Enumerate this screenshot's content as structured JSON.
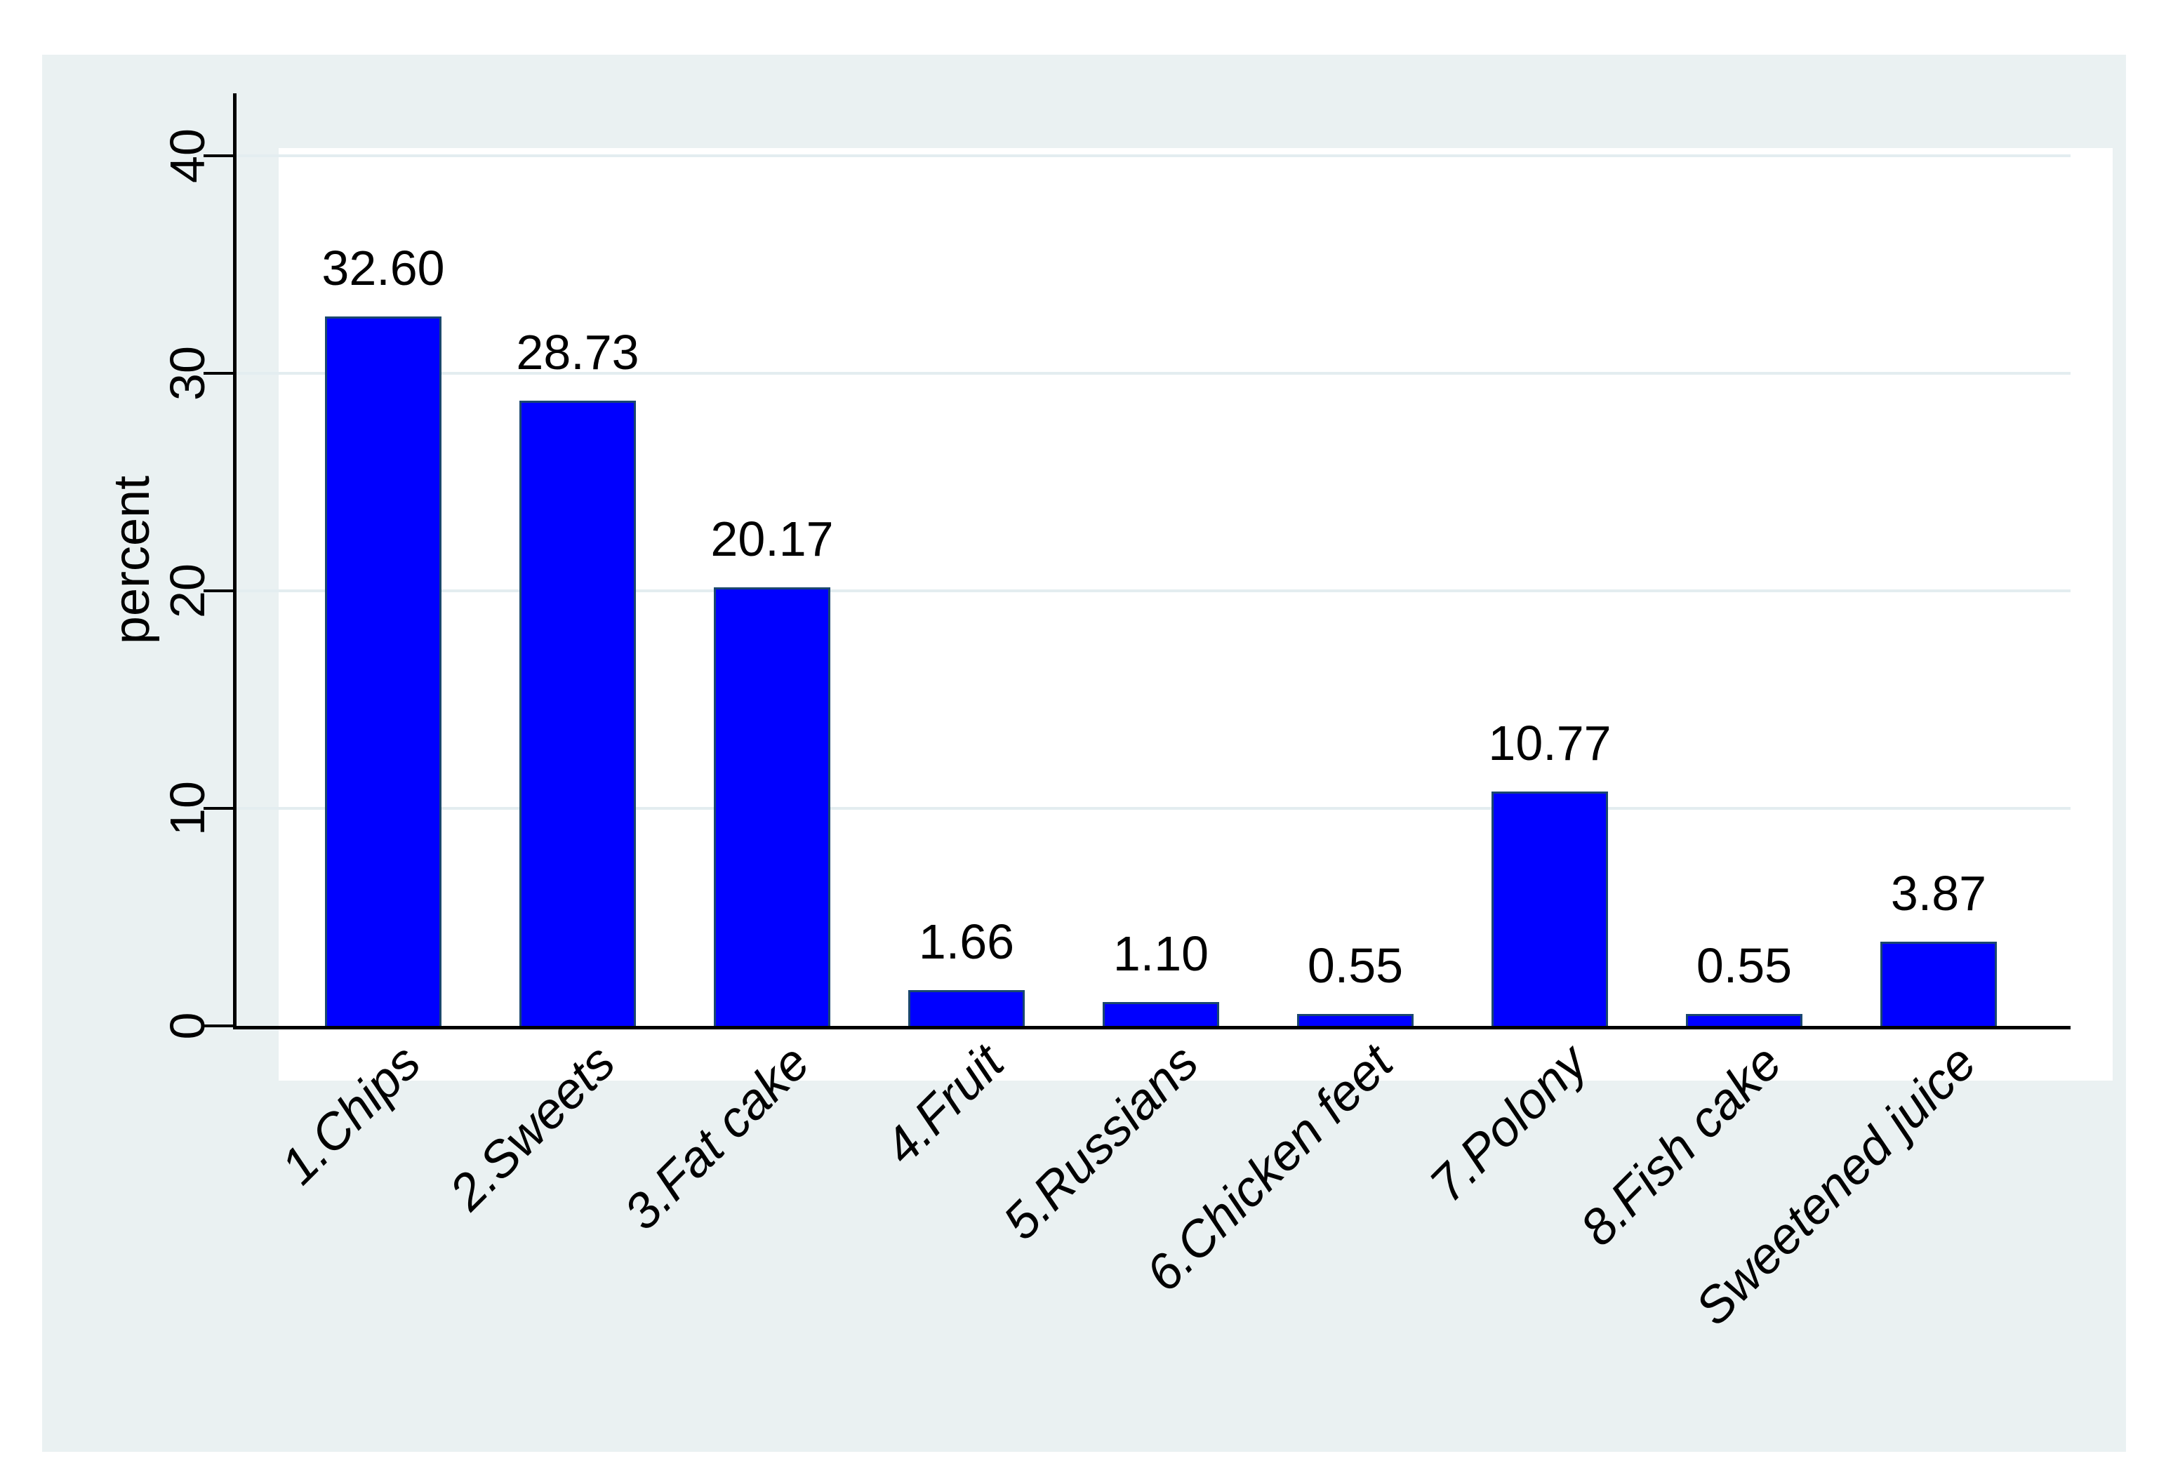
{
  "chart_data": {
    "type": "bar",
    "title": "",
    "xlabel": "",
    "ylabel": "percent",
    "categories": [
      "1.Chips",
      "2.Sweets",
      "3.Fat cake",
      "4.Fruit",
      "5.Russians",
      "6.Chicken feet",
      "7.Polony",
      "8.Fish cake",
      "Sweetened juice"
    ],
    "values": [
      32.6,
      28.73,
      20.17,
      1.66,
      1.1,
      0.55,
      10.77,
      0.55,
      3.87
    ],
    "bar_value_labels": [
      "32.60",
      "28.73",
      "20.17",
      "1.66",
      "1.10",
      "0.55",
      "10.77",
      "0.55",
      "3.87"
    ],
    "yticks": [
      0,
      10,
      20,
      30,
      40
    ],
    "ytick_labels": [
      "0",
      "10",
      "20",
      "30",
      "40"
    ],
    "ylim": [
      0,
      42.9
    ],
    "grid": true,
    "legend": "none",
    "colors": {
      "bar_fill": "#0000ff",
      "bar_outline": "#1a476f",
      "graph_background": "#eaf1f2",
      "plot_background": "#ffffff",
      "gridline": "#e3edf0",
      "axis": "#000000",
      "text": "#000000"
    }
  }
}
